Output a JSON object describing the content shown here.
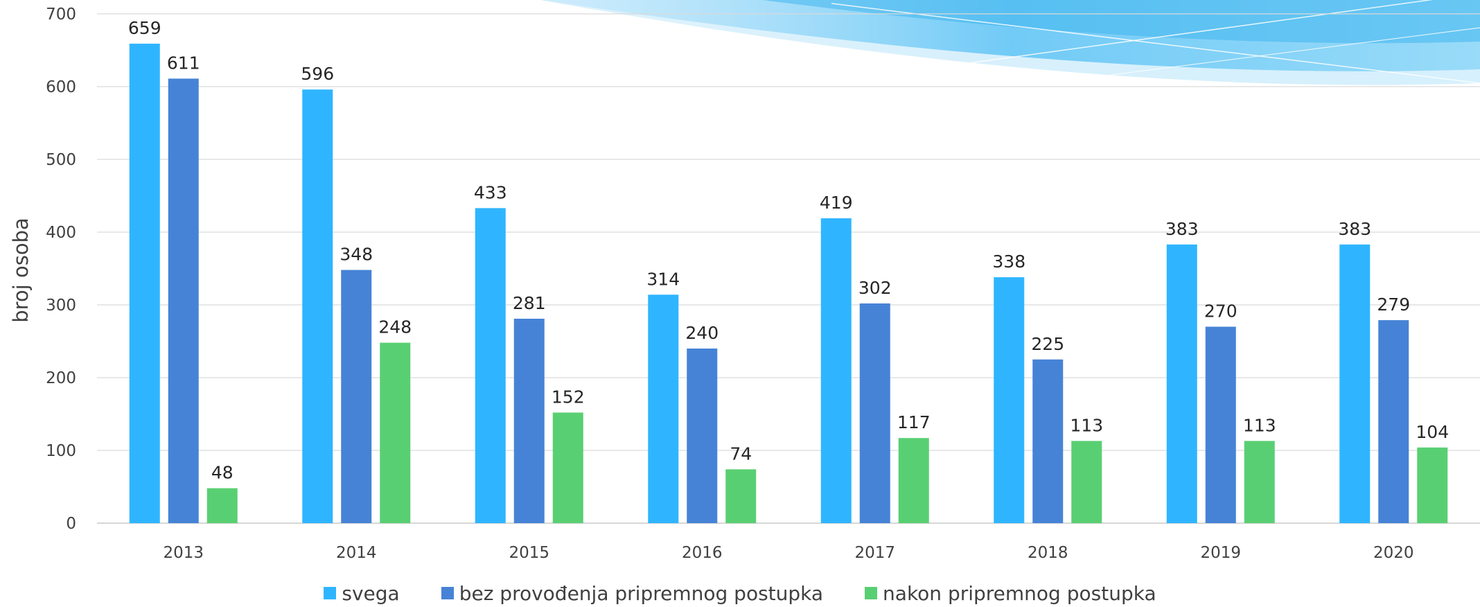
{
  "chart_data": {
    "type": "bar",
    "title": "",
    "xlabel": "",
    "ylabel": "broj osoba",
    "ylim": [
      0,
      700
    ],
    "yticks": [
      "0",
      "100",
      "200",
      "300",
      "400",
      "500",
      "600",
      "700"
    ],
    "grid": true,
    "legend_position": "bottom",
    "categories": [
      "2013",
      "2014",
      "2015",
      "2016",
      "2017",
      "2018",
      "2019",
      "2020"
    ],
    "series": [
      {
        "name": "svega",
        "color": "#2FB5FF",
        "values": [
          659,
          596,
          433,
          314,
          419,
          338,
          383,
          383
        ]
      },
      {
        "name": "bez provođenja pripremnog postupka",
        "color": "#4683D6",
        "values": [
          611,
          348,
          281,
          240,
          302,
          225,
          270,
          279
        ]
      },
      {
        "name": "nakon pripremnog postupka",
        "color": "#59CF73",
        "values": [
          48,
          248,
          152,
          74,
          117,
          113,
          113,
          104
        ]
      }
    ]
  }
}
